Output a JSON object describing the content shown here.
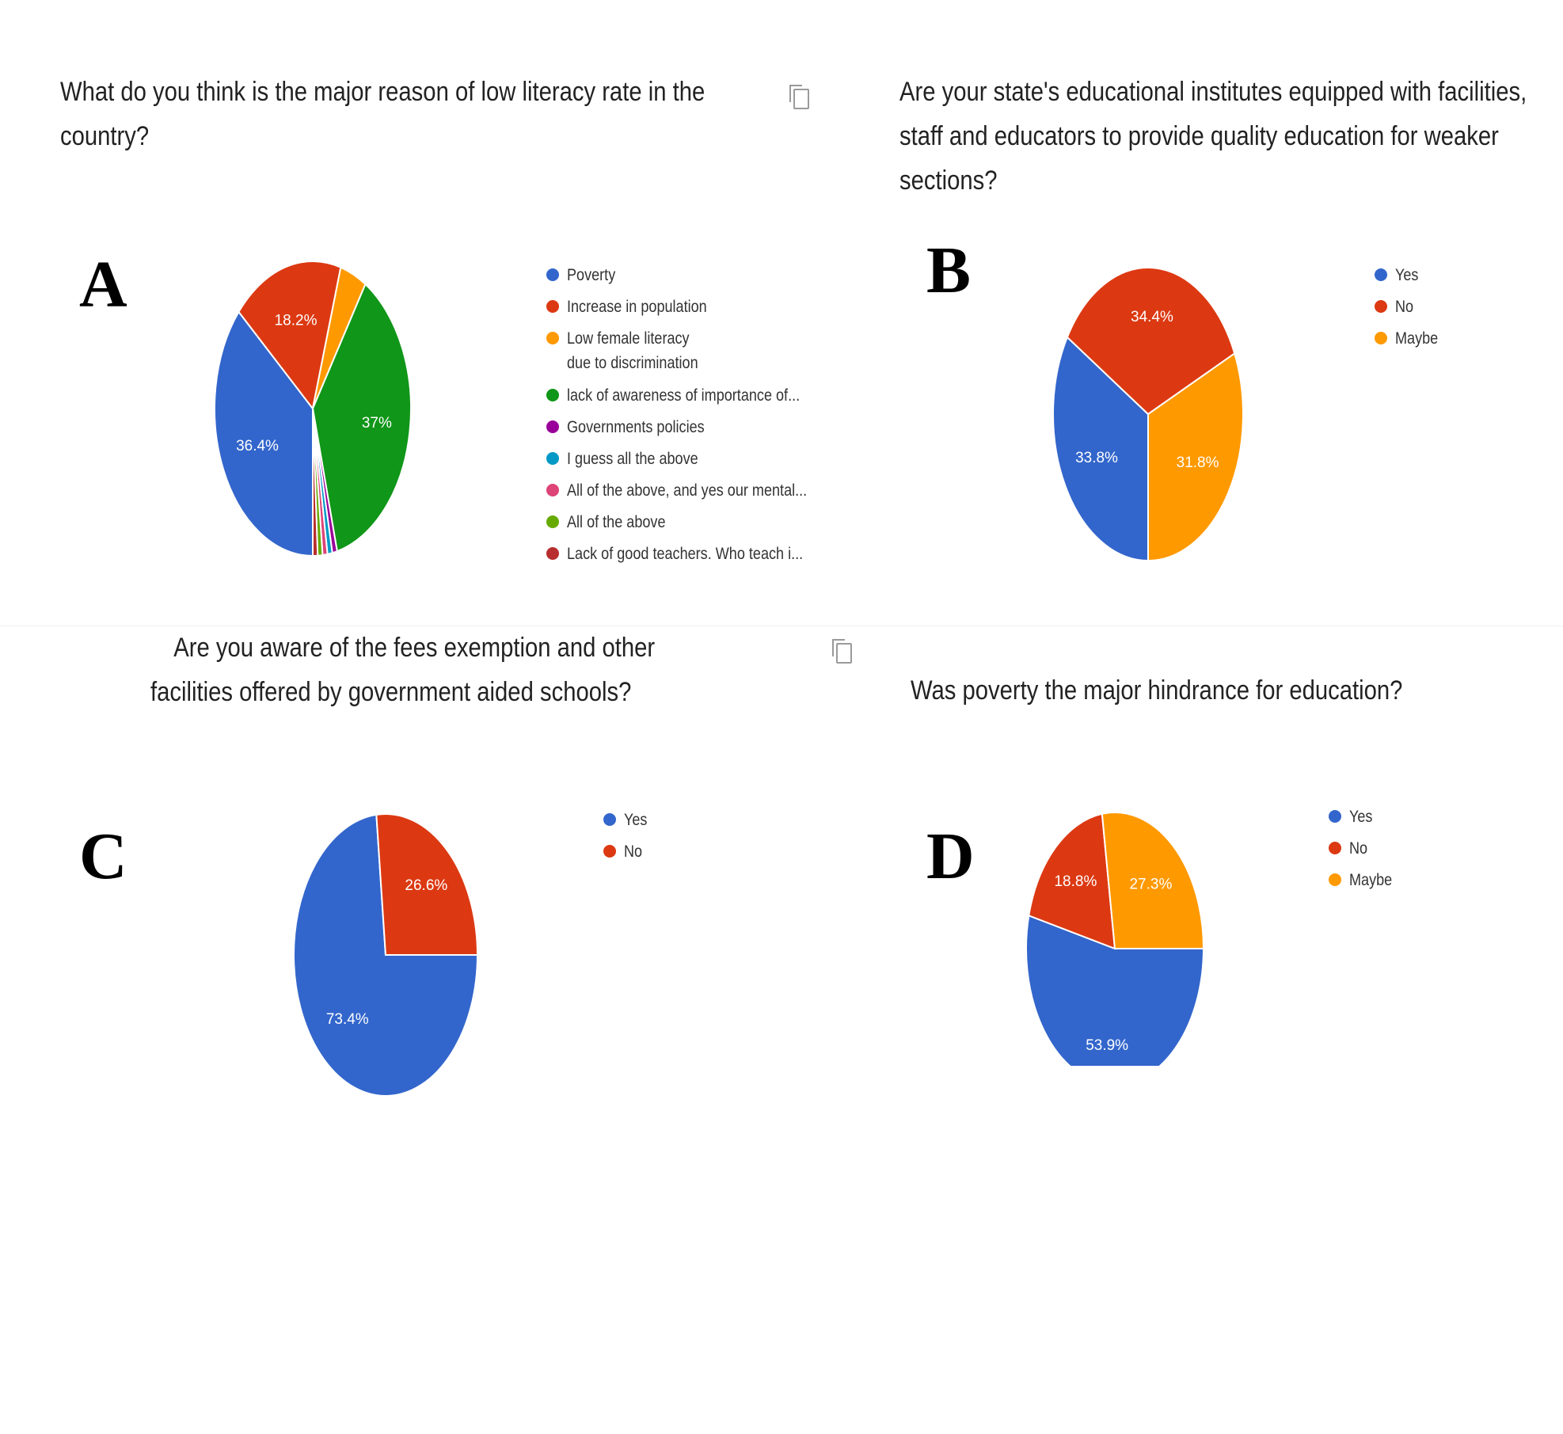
{
  "panels": [
    {
      "letter": "A",
      "question": "What do you think is the major reason of low literacy rate in the country?",
      "legend_entries": [
        {
          "label": "Poverty",
          "color": "#3366cc"
        },
        {
          "label": "Increase in population",
          "color": "#dc3912"
        },
        {
          "label": "Low female literacy due to discrimination",
          "color": "#ff9900"
        },
        {
          "label": "lack of awareness of importance of...",
          "color": "#109618"
        },
        {
          "label": "Governments policies",
          "color": "#990099"
        },
        {
          "label": "I guess all the above",
          "color": "#0099c6"
        },
        {
          "label": "All of the above, and yes our mental...",
          "color": "#dd4477"
        },
        {
          "label": "All of the above",
          "color": "#66aa00"
        },
        {
          "label": "Lack of good teachers. Who teach i...",
          "color": "#b82e2e"
        }
      ]
    },
    {
      "letter": "B",
      "question": "Are your state's educational institutes equipped with facilities, staff and educators to provide quality education for weaker sections?",
      "legend_entries": [
        {
          "label": "Yes",
          "color": "#3366cc"
        },
        {
          "label": "No",
          "color": "#dc3912"
        },
        {
          "label": "Maybe",
          "color": "#ff9900"
        }
      ]
    },
    {
      "letter": "C",
      "question": "Are you aware of the fees exemption and other facilities offered by government aided schools?",
      "legend_entries": [
        {
          "label": "Yes",
          "color": "#3366cc"
        },
        {
          "label": "No",
          "color": "#dc3912"
        }
      ]
    },
    {
      "letter": "D",
      "question": "Was poverty the major hindrance for education?",
      "legend_entries": [
        {
          "label": "Yes",
          "color": "#3366cc"
        },
        {
          "label": "No",
          "color": "#dc3912"
        },
        {
          "label": "Maybe",
          "color": "#ff9900"
        }
      ]
    }
  ],
  "chart_data": [
    {
      "type": "pie",
      "panel": "A",
      "labels": [
        "Poverty",
        "Increase in population",
        "Low female literacy due to discrimination",
        "lack of awareness of importance of...",
        "Governments policies",
        "I guess all the above",
        "All of the above, and yes our mental...",
        "All of the above",
        "Lack of good teachers. Who teach i..."
      ],
      "values": [
        36.4,
        18.2,
        4.4,
        37,
        0.8,
        0.8,
        0.8,
        0.8,
        0.8
      ],
      "value_labels": [
        "36.4%",
        "18.2%",
        "",
        "37%",
        "",
        "",
        "",
        "",
        ""
      ],
      "colors": [
        "#3366cc",
        "#dc3912",
        "#ff9900",
        "#109618",
        "#990099",
        "#0099c6",
        "#dd4477",
        "#66aa00",
        "#b82e2e"
      ],
      "legend": "right"
    },
    {
      "type": "pie",
      "panel": "B",
      "labels": [
        "Yes",
        "No",
        "Maybe"
      ],
      "values": [
        33.8,
        34.4,
        31.8
      ],
      "value_labels": [
        "33.8%",
        "34.4%",
        "31.8%"
      ],
      "colors": [
        "#3366cc",
        "#dc3912",
        "#ff9900"
      ],
      "legend": "right"
    },
    {
      "type": "pie",
      "panel": "C",
      "labels": [
        "Yes",
        "No"
      ],
      "values": [
        73.4,
        26.6
      ],
      "value_labels": [
        "73.4%",
        "26.6%"
      ],
      "colors": [
        "#3366cc",
        "#dc3912"
      ],
      "legend": "right"
    },
    {
      "type": "pie",
      "panel": "D",
      "labels": [
        "Yes",
        "No",
        "Maybe"
      ],
      "values": [
        53.9,
        18.8,
        27.3
      ],
      "value_labels": [
        "53.9%",
        "18.8%",
        "27.3%"
      ],
      "colors": [
        "#3366cc",
        "#dc3912",
        "#ff9900"
      ],
      "legend": "right"
    }
  ]
}
